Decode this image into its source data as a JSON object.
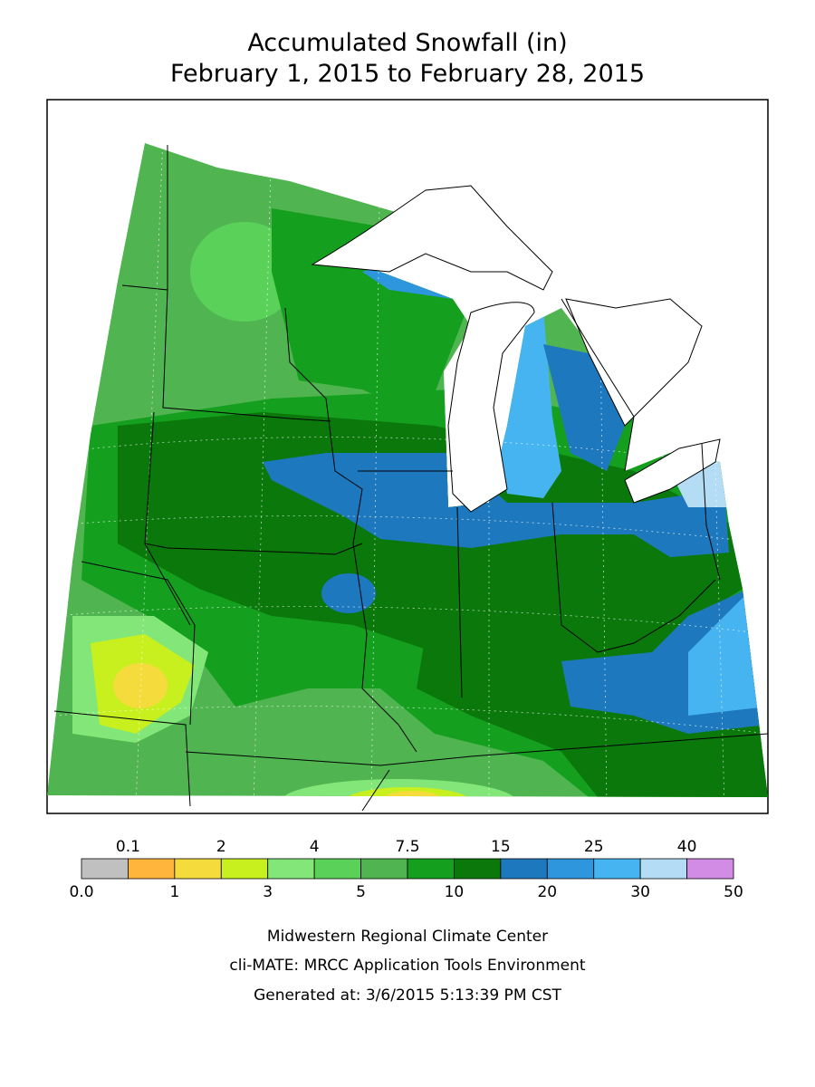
{
  "header": {
    "title": "Accumulated Snowfall (in)",
    "subtitle": "February 1, 2015 to February 28, 2015"
  },
  "legend": {
    "colors": [
      "#c0c0c0",
      "#ffb43c",
      "#f5dc3c",
      "#c8f01e",
      "#82e678",
      "#5ad25a",
      "#50b450",
      "#14a01e",
      "#0a780a",
      "#1e78be",
      "#2d96dc",
      "#46b4f0",
      "#b4dcf5",
      "#d28ce6"
    ],
    "labels_top": [
      "0.1",
      "2",
      "4",
      "7.5",
      "15",
      "25",
      "40"
    ],
    "labels_bottom": [
      "0.0",
      "1",
      "3",
      "5",
      "10",
      "20",
      "30",
      "50"
    ]
  },
  "footer": {
    "lines": [
      "Midwestern Regional Climate Center",
      "cli-MATE: MRCC Application Tools Environment",
      "Generated at: 3/6/2015 5:13:39 PM CST"
    ]
  }
}
